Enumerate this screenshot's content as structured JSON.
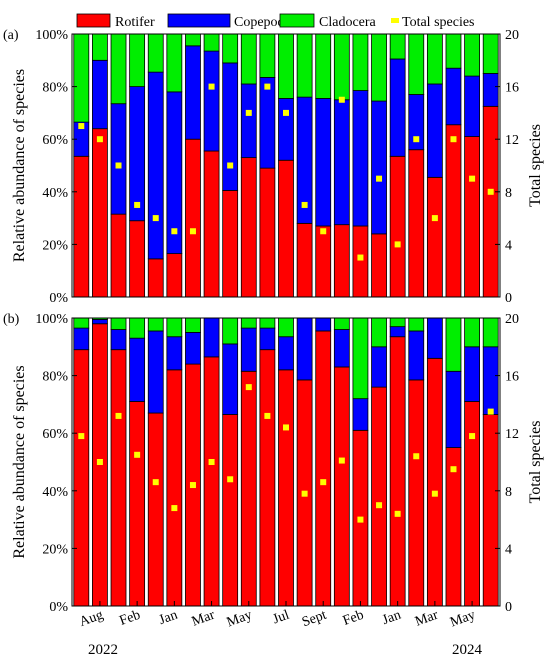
{
  "legend": [
    {
      "label": "Rotifer",
      "color": "#ff0000",
      "key": "rotifer"
    },
    {
      "label": "Copepoda",
      "color": "#0000ff",
      "key": "copepoda"
    },
    {
      "label": "Cladocera",
      "color": "#00ee00",
      "key": "cladocera"
    },
    {
      "label": "Total species",
      "color": "#ffff00",
      "key": "total"
    }
  ],
  "x_tick_labels": [
    "Aug",
    "Feb",
    "Jan",
    "Mar",
    "May",
    "Jul",
    "Sept",
    "Feb",
    "Jan",
    "Mar",
    "May"
  ],
  "year_labels": [
    "2022",
    "2024"
  ],
  "chart_data": [
    {
      "type": "bar",
      "panel_label": "(a)",
      "stacked": true,
      "ylabel": "Relative abundance of species",
      "y_tick_labels": [
        "0%",
        "20%",
        "40%",
        "60%",
        "80%",
        "100%"
      ],
      "ylim": [
        0,
        100
      ],
      "y2label": "Total species",
      "y2_tick_labels": [
        "0",
        "4",
        "8",
        "12",
        "16",
        "20"
      ],
      "y2lim": [
        0,
        20
      ],
      "series": [
        {
          "name": "Rotifer",
          "values": [
            53.5,
            64,
            31.5,
            29,
            14.5,
            16.5,
            60,
            55.5,
            40.5,
            53,
            49,
            52,
            28,
            27,
            27.5,
            27,
            24,
            53.5,
            56,
            45.5,
            65.5,
            61,
            72.5
          ]
        },
        {
          "name": "Copepoda",
          "values": [
            13,
            26,
            42,
            51,
            71,
            61.5,
            35.5,
            38,
            48.5,
            28,
            34.5,
            23.5,
            48,
            48.5,
            47.5,
            51.5,
            50.5,
            37,
            21,
            35.5,
            21.5,
            23,
            12.5
          ]
        },
        {
          "name": "Cladocera",
          "values": [
            33.5,
            10,
            26.5,
            20,
            14.5,
            22,
            4.5,
            6.5,
            11,
            19,
            16.5,
            24.5,
            24,
            24.5,
            25,
            21.5,
            25.5,
            9.5,
            23,
            19,
            13,
            16,
            15
          ]
        },
        {
          "name": "Total species",
          "axis": "right",
          "values": [
            13,
            12,
            10,
            7,
            6,
            5,
            5,
            16,
            10,
            14,
            16,
            14,
            7,
            5,
            15,
            3,
            9,
            4,
            12,
            6,
            12,
            9,
            8
          ]
        }
      ]
    },
    {
      "type": "bar",
      "panel_label": "(b)",
      "stacked": true,
      "ylabel": "Relative abundance of species",
      "y_tick_labels": [
        "0%",
        "20%",
        "40%",
        "60%",
        "80%",
        "100%"
      ],
      "ylim": [
        0,
        100
      ],
      "y2label": "Total species",
      "y2_tick_labels": [
        "0",
        "4",
        "8",
        "12",
        "16",
        "20"
      ],
      "y2lim": [
        0,
        20
      ],
      "series": [
        {
          "name": "Rotifer",
          "values": [
            89,
            98,
            89,
            71,
            67,
            82,
            84,
            86.5,
            66.5,
            81.5,
            89,
            82,
            78.5,
            95.5,
            83,
            61,
            76,
            93.5,
            78.5,
            86,
            55,
            71,
            66.5
          ]
        },
        {
          "name": "Copepoda",
          "values": [
            7.5,
            1.5,
            7,
            22,
            28.5,
            11.5,
            11,
            13.5,
            24.5,
            15,
            7.5,
            11.5,
            21.5,
            4.5,
            13,
            11,
            14,
            3.5,
            17,
            14,
            26.5,
            19,
            23.5
          ]
        },
        {
          "name": "Cladocera",
          "values": [
            3.5,
            0.5,
            4,
            7,
            4.5,
            6.5,
            5,
            0,
            9,
            3.5,
            3.5,
            6.5,
            0,
            0,
            4,
            28,
            10,
            3,
            4.5,
            0,
            18.5,
            10,
            10
          ]
        },
        {
          "name": "Total species",
          "axis": "right",
          "values": [
            11.8,
            10,
            13.2,
            10.5,
            8.6,
            6.8,
            8.4,
            10,
            8.8,
            15.2,
            13.2,
            12.4,
            7.8,
            8.6,
            10.1,
            6,
            7,
            6.4,
            10.4,
            7.8,
            9.5,
            11.8,
            13.5
          ]
        }
      ]
    }
  ]
}
